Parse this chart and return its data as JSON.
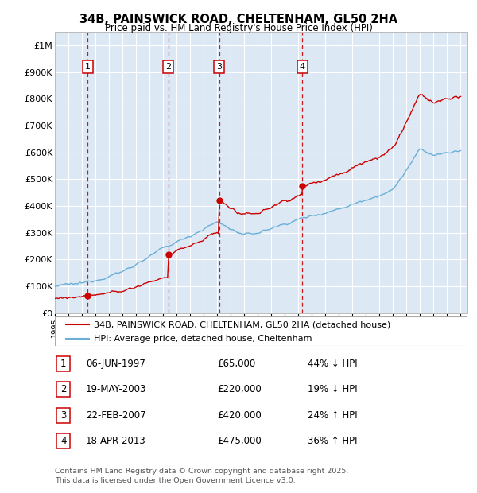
{
  "title": "34B, PAINSWICK ROAD, CHELTENHAM, GL50 2HA",
  "subtitle": "Price paid vs. HM Land Registry's House Price Index (HPI)",
  "bg_color": "#dce9f5",
  "hpi_color": "#6baed6",
  "price_color": "#cc0000",
  "ylim": [
    0,
    1050000
  ],
  "yticks": [
    0,
    100000,
    200000,
    300000,
    400000,
    500000,
    600000,
    700000,
    800000,
    900000,
    1000000
  ],
  "ytick_labels": [
    "£0",
    "£100K",
    "£200K",
    "£300K",
    "£400K",
    "£500K",
    "£600K",
    "£700K",
    "£800K",
    "£900K",
    "£1M"
  ],
  "xlim_start": 1995,
  "xlim_end": 2025.5,
  "transactions": [
    {
      "num": 1,
      "year": 1997.43,
      "price": 65000,
      "label": "1"
    },
    {
      "num": 2,
      "year": 2003.38,
      "price": 220000,
      "label": "2"
    },
    {
      "num": 3,
      "year": 2007.14,
      "price": 420000,
      "label": "3"
    },
    {
      "num": 4,
      "year": 2013.3,
      "price": 475000,
      "label": "4"
    }
  ],
  "table_rows": [
    {
      "num": "1",
      "date": "06-JUN-1997",
      "price": "£65,000",
      "hpi": "44% ↓ HPI"
    },
    {
      "num": "2",
      "date": "19-MAY-2003",
      "price": "£220,000",
      "hpi": "19% ↓ HPI"
    },
    {
      "num": "3",
      "date": "22-FEB-2007",
      "price": "£420,000",
      "hpi": "24% ↑ HPI"
    },
    {
      "num": "4",
      "date": "18-APR-2013",
      "price": "£475,000",
      "hpi": "36% ↑ HPI"
    }
  ],
  "footer": "Contains HM Land Registry data © Crown copyright and database right 2025.\nThis data is licensed under the Open Government Licence v3.0.",
  "legend_line1": "34B, PAINSWICK ROAD, CHELTENHAM, GL50 2HA (detached house)",
  "legend_line2": "HPI: Average price, detached house, Cheltenham"
}
